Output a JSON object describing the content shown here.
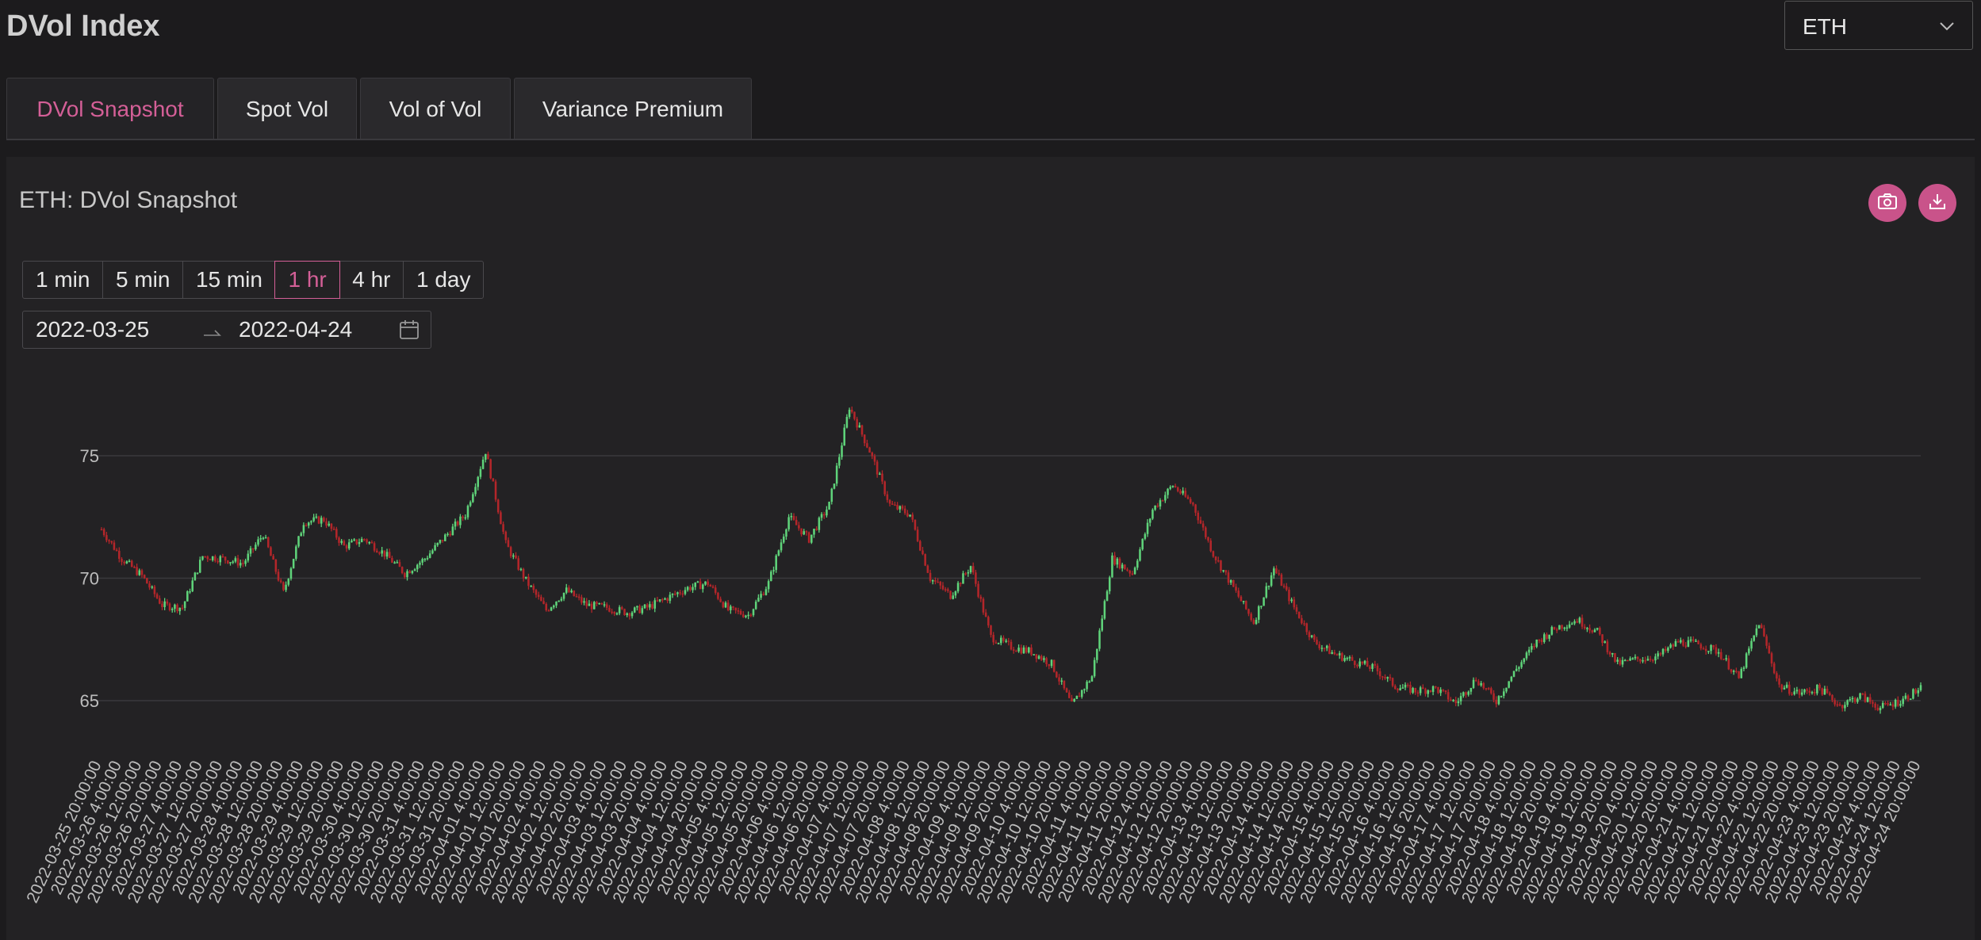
{
  "header": {
    "title": "DVol Index"
  },
  "asset_select": {
    "value": "ETH"
  },
  "tabs": [
    {
      "label": "DVol Snapshot",
      "active": true
    },
    {
      "label": "Spot Vol",
      "active": false
    },
    {
      "label": "Vol of Vol",
      "active": false
    },
    {
      "label": "Variance Premium",
      "active": false
    }
  ],
  "panel": {
    "title": "ETH: DVol Snapshot",
    "intervals": [
      "1 min",
      "5 min",
      "15 min",
      "1 hr",
      "4 hr",
      "1 day"
    ],
    "active_interval": "1 hr",
    "date_start": "2022-03-25",
    "date_end": "2022-04-24",
    "icons": [
      "camera-icon",
      "download-icon",
      "calendar-icon",
      "arrow-right-icon",
      "chevron-down-icon"
    ]
  },
  "colors": {
    "accent": "#d45f97",
    "up": "#5fd37a",
    "down": "#b3262a",
    "gridline": "#3a393d",
    "background": "#1c1b1d"
  },
  "chart_data": {
    "type": "candlestick",
    "title": "",
    "xlabel": "",
    "ylabel": "",
    "yticks": [
      65,
      70,
      75
    ],
    "grid": true,
    "x_ticks": [
      "2022-03-25 20:00:00",
      "2022-03-26 4:00:00",
      "2022-03-26 12:00:00",
      "2022-03-26 20:00:00",
      "2022-03-27 4:00:00",
      "2022-03-27 12:00:00",
      "2022-03-27 20:00:00",
      "2022-03-28 4:00:00",
      "2022-03-28 12:00:00",
      "2022-03-28 20:00:00",
      "2022-03-29 4:00:00",
      "2022-03-29 12:00:00",
      "2022-03-29 20:00:00",
      "2022-03-30 4:00:00",
      "2022-03-30 12:00:00",
      "2022-03-30 20:00:00",
      "2022-03-31 4:00:00",
      "2022-03-31 12:00:00",
      "2022-03-31 20:00:00",
      "2022-04-01 4:00:00",
      "2022-04-01 12:00:00",
      "2022-04-01 20:00:00",
      "2022-04-02 4:00:00",
      "2022-04-02 12:00:00",
      "2022-04-02 20:00:00",
      "2022-04-03 4:00:00",
      "2022-04-03 12:00:00",
      "2022-04-03 20:00:00",
      "2022-04-04 4:00:00",
      "2022-04-04 12:00:00",
      "2022-04-04 20:00:00",
      "2022-04-05 4:00:00",
      "2022-04-05 12:00:00",
      "2022-04-05 20:00:00",
      "2022-04-06 4:00:00",
      "2022-04-06 12:00:00",
      "2022-04-06 20:00:00",
      "2022-04-07 4:00:00",
      "2022-04-07 12:00:00",
      "2022-04-07 20:00:00",
      "2022-04-08 4:00:00",
      "2022-04-08 12:00:00",
      "2022-04-08 20:00:00",
      "2022-04-09 4:00:00",
      "2022-04-09 12:00:00",
      "2022-04-09 20:00:00",
      "2022-04-10 4:00:00",
      "2022-04-10 12:00:00",
      "2022-04-10 20:00:00",
      "2022-04-11 4:00:00",
      "2022-04-11 12:00:00",
      "2022-04-11 20:00:00",
      "2022-04-12 4:00:00",
      "2022-04-12 12:00:00",
      "2022-04-12 20:00:00",
      "2022-04-13 4:00:00",
      "2022-04-13 12:00:00",
      "2022-04-13 20:00:00",
      "2022-04-14 4:00:00",
      "2022-04-14 12:00:00",
      "2022-04-14 20:00:00",
      "2022-04-15 4:00:00",
      "2022-04-15 12:00:00",
      "2022-04-15 20:00:00",
      "2022-04-16 4:00:00",
      "2022-04-16 12:00:00",
      "2022-04-16 20:00:00",
      "2022-04-17 4:00:00",
      "2022-04-17 12:00:00",
      "2022-04-17 20:00:00",
      "2022-04-18 4:00:00",
      "2022-04-18 12:00:00",
      "2022-04-18 20:00:00",
      "2022-04-19 4:00:00",
      "2022-04-19 12:00:00",
      "2022-04-19 20:00:00",
      "2022-04-20 4:00:00",
      "2022-04-20 12:00:00",
      "2022-04-20 20:00:00",
      "2022-04-21 4:00:00",
      "2022-04-21 12:00:00",
      "2022-04-21 20:00:00",
      "2022-04-22 4:00:00",
      "2022-04-22 12:00:00",
      "2022-04-22 20:00:00",
      "2022-04-23 4:00:00",
      "2022-04-23 12:00:00",
      "2022-04-23 20:00:00",
      "2022-04-24 4:00:00",
      "2022-04-24 12:00:00",
      "2022-04-24 20:00:00"
    ],
    "close_path": [
      {
        "x": "2022-03-25 20:00:00",
        "y": 72.0
      },
      {
        "x": "2022-03-26 4:00:00",
        "y": 70.8
      },
      {
        "x": "2022-03-26 12:00:00",
        "y": 70.1
      },
      {
        "x": "2022-03-26 20:00:00",
        "y": 68.9
      },
      {
        "x": "2022-03-27 4:00:00",
        "y": 68.8
      },
      {
        "x": "2022-03-27 12:00:00",
        "y": 70.9
      },
      {
        "x": "2022-03-27 20:00:00",
        "y": 70.8
      },
      {
        "x": "2022-03-28 4:00:00",
        "y": 70.6
      },
      {
        "x": "2022-03-28 12:00:00",
        "y": 71.8
      },
      {
        "x": "2022-03-28 20:00:00",
        "y": 69.4
      },
      {
        "x": "2022-03-29 4:00:00",
        "y": 72.3
      },
      {
        "x": "2022-03-29 12:00:00",
        "y": 72.4
      },
      {
        "x": "2022-03-29 20:00:00",
        "y": 71.3
      },
      {
        "x": "2022-03-30 4:00:00",
        "y": 71.6
      },
      {
        "x": "2022-03-30 12:00:00",
        "y": 71.0
      },
      {
        "x": "2022-03-30 20:00:00",
        "y": 70.2
      },
      {
        "x": "2022-03-31 4:00:00",
        "y": 70.8
      },
      {
        "x": "2022-03-31 12:00:00",
        "y": 71.7
      },
      {
        "x": "2022-03-31 20:00:00",
        "y": 72.6
      },
      {
        "x": "2022-04-01 4:00:00",
        "y": 75.2
      },
      {
        "x": "2022-04-01 12:00:00",
        "y": 71.4
      },
      {
        "x": "2022-04-01 20:00:00",
        "y": 69.9
      },
      {
        "x": "2022-04-02 4:00:00",
        "y": 68.7
      },
      {
        "x": "2022-04-02 12:00:00",
        "y": 69.5
      },
      {
        "x": "2022-04-02 20:00:00",
        "y": 68.9
      },
      {
        "x": "2022-04-03 4:00:00",
        "y": 68.8
      },
      {
        "x": "2022-04-03 12:00:00",
        "y": 68.6
      },
      {
        "x": "2022-04-03 20:00:00",
        "y": 68.8
      },
      {
        "x": "2022-04-04 4:00:00",
        "y": 69.2
      },
      {
        "x": "2022-04-04 12:00:00",
        "y": 69.6
      },
      {
        "x": "2022-04-04 20:00:00",
        "y": 69.8
      },
      {
        "x": "2022-04-05 4:00:00",
        "y": 68.7
      },
      {
        "x": "2022-04-05 12:00:00",
        "y": 68.5
      },
      {
        "x": "2022-04-05 20:00:00",
        "y": 69.8
      },
      {
        "x": "2022-04-06 4:00:00",
        "y": 72.5
      },
      {
        "x": "2022-04-06 12:00:00",
        "y": 71.6
      },
      {
        "x": "2022-04-06 20:00:00",
        "y": 73.0
      },
      {
        "x": "2022-04-07 4:00:00",
        "y": 77.0
      },
      {
        "x": "2022-04-07 12:00:00",
        "y": 75.2
      },
      {
        "x": "2022-04-07 20:00:00",
        "y": 73.0
      },
      {
        "x": "2022-04-08 4:00:00",
        "y": 72.6
      },
      {
        "x": "2022-04-08 12:00:00",
        "y": 70.0
      },
      {
        "x": "2022-04-08 20:00:00",
        "y": 69.3
      },
      {
        "x": "2022-04-09 4:00:00",
        "y": 70.5
      },
      {
        "x": "2022-04-09 12:00:00",
        "y": 67.6
      },
      {
        "x": "2022-04-09 20:00:00",
        "y": 67.2
      },
      {
        "x": "2022-04-10 4:00:00",
        "y": 67.0
      },
      {
        "x": "2022-04-10 12:00:00",
        "y": 66.5
      },
      {
        "x": "2022-04-10 20:00:00",
        "y": 64.8
      },
      {
        "x": "2022-04-11 4:00:00",
        "y": 66.0
      },
      {
        "x": "2022-04-11 12:00:00",
        "y": 70.8
      },
      {
        "x": "2022-04-11 20:00:00",
        "y": 70.2
      },
      {
        "x": "2022-04-12 4:00:00",
        "y": 72.8
      },
      {
        "x": "2022-04-12 12:00:00",
        "y": 73.8
      },
      {
        "x": "2022-04-12 20:00:00",
        "y": 73.0
      },
      {
        "x": "2022-04-13 4:00:00",
        "y": 71.0
      },
      {
        "x": "2022-04-13 12:00:00",
        "y": 69.6
      },
      {
        "x": "2022-04-13 20:00:00",
        "y": 68.2
      },
      {
        "x": "2022-04-14 4:00:00",
        "y": 70.4
      },
      {
        "x": "2022-04-14 12:00:00",
        "y": 68.8
      },
      {
        "x": "2022-04-14 20:00:00",
        "y": 67.4
      },
      {
        "x": "2022-04-15 4:00:00",
        "y": 66.9
      },
      {
        "x": "2022-04-15 12:00:00",
        "y": 66.6
      },
      {
        "x": "2022-04-15 20:00:00",
        "y": 66.3
      },
      {
        "x": "2022-04-16 4:00:00",
        "y": 65.6
      },
      {
        "x": "2022-04-16 12:00:00",
        "y": 65.4
      },
      {
        "x": "2022-04-16 20:00:00",
        "y": 65.5
      },
      {
        "x": "2022-04-17 4:00:00",
        "y": 64.9
      },
      {
        "x": "2022-04-17 12:00:00",
        "y": 65.9
      },
      {
        "x": "2022-04-17 20:00:00",
        "y": 65.0
      },
      {
        "x": "2022-04-18 4:00:00",
        "y": 66.3
      },
      {
        "x": "2022-04-18 12:00:00",
        "y": 67.4
      },
      {
        "x": "2022-04-18 20:00:00",
        "y": 68.0
      },
      {
        "x": "2022-04-19 4:00:00",
        "y": 68.3
      },
      {
        "x": "2022-04-19 12:00:00",
        "y": 67.8
      },
      {
        "x": "2022-04-19 20:00:00",
        "y": 66.5
      },
      {
        "x": "2022-04-20 4:00:00",
        "y": 66.7
      },
      {
        "x": "2022-04-20 12:00:00",
        "y": 66.8
      },
      {
        "x": "2022-04-20 20:00:00",
        "y": 67.4
      },
      {
        "x": "2022-04-21 4:00:00",
        "y": 67.3
      },
      {
        "x": "2022-04-21 12:00:00",
        "y": 67.0
      },
      {
        "x": "2022-04-21 20:00:00",
        "y": 65.9
      },
      {
        "x": "2022-04-22 4:00:00",
        "y": 68.2
      },
      {
        "x": "2022-04-22 12:00:00",
        "y": 65.6
      },
      {
        "x": "2022-04-22 20:00:00",
        "y": 65.3
      },
      {
        "x": "2022-04-23 4:00:00",
        "y": 65.5
      },
      {
        "x": "2022-04-23 12:00:00",
        "y": 64.8
      },
      {
        "x": "2022-04-23 20:00:00",
        "y": 65.2
      },
      {
        "x": "2022-04-24 4:00:00",
        "y": 64.7
      },
      {
        "x": "2022-04-24 12:00:00",
        "y": 65.0
      },
      {
        "x": "2022-04-24 20:00:00",
        "y": 65.5
      }
    ]
  }
}
